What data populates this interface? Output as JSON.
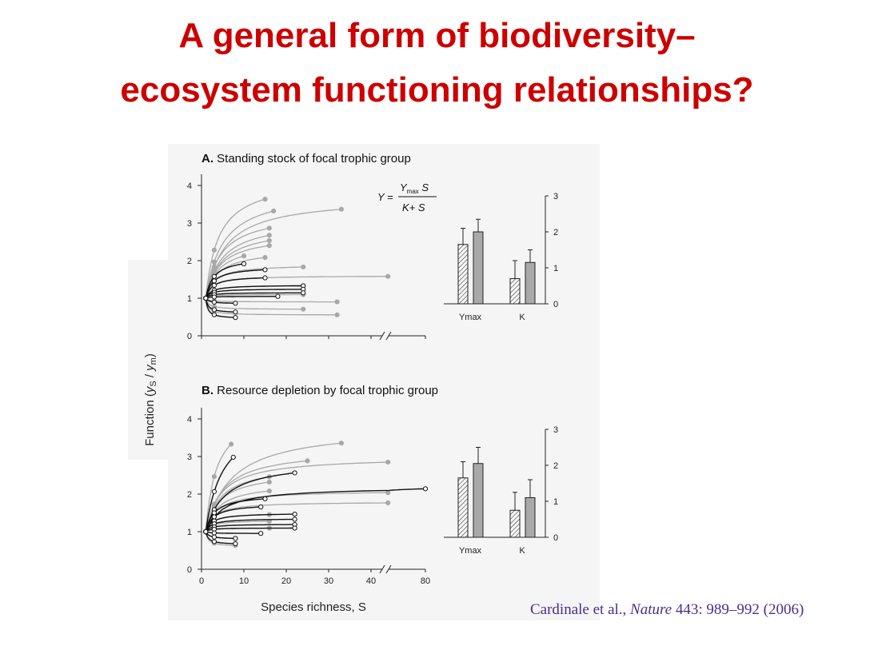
{
  "slide": {
    "title_line_1": "A general form of biodiversity–",
    "title_line_2": "ecosystem functioning relationships?",
    "citation": {
      "authors": "Cardinale et al., ",
      "journal": "Nature",
      "details": " 443: 989–992 (2006)"
    }
  },
  "colors": {
    "title": "#cc0000",
    "citation": "#4a2f8a",
    "gray_curves": "#a8a8a8",
    "black_curves": "#111111",
    "bar_fill": "#a9a9a9"
  },
  "shared_y_label": "Function (y",
  "shared_y_label_parts": [
    "Function (",
    "y",
    "S",
    " / ",
    "y",
    "m",
    ")"
  ],
  "equation": {
    "lhs": "Y =",
    "numerator": "Y",
    "numerator_sub": "max",
    "numerator_tail": " S",
    "denominator": "K+ S"
  },
  "chart_data": [
    {
      "type": "scatter",
      "panel": "A",
      "panel_letter": "A.",
      "title": "Standing stock of focal trophic group",
      "xlabel": "",
      "ylabel": "Function (yS / ym)",
      "ylim": [
        0,
        4.3
      ],
      "yticks": [
        0,
        1,
        2,
        3,
        4
      ],
      "x_break": true,
      "model": "Michaelis-Menten",
      "gray_curves": [
        {
          "ymax": 4.2,
          "k": 2.0,
          "end": 15
        },
        {
          "ymax": 3.9,
          "k": 3.0,
          "end": 17
        },
        {
          "ymax": 3.7,
          "k": 3.5,
          "end": 33
        },
        {
          "ymax": 3.3,
          "k": 2.5,
          "end": 16
        },
        {
          "ymax": 3.1,
          "k": 2.8,
          "end": 16
        },
        {
          "ymax": 2.9,
          "k": 2.6,
          "end": 16
        },
        {
          "ymax": 2.7,
          "k": 2.2,
          "end": 16
        },
        {
          "ymax": 2.5,
          "k": 2.0,
          "end": 10
        },
        {
          "ymax": 2.3,
          "k": 1.8,
          "end": 15
        },
        {
          "ymax": 1.9,
          "k": 0.9,
          "end": 24
        },
        {
          "ymax": 1.6,
          "k": 0.4,
          "end": 44
        },
        {
          "ymax": 1.35,
          "k": 0.3,
          "end": 24
        },
        {
          "ymax": 1.1,
          "k": 0.1,
          "end": 24
        },
        {
          "ymax": 0.9,
          "k": -0.15,
          "end": 32
        },
        {
          "ymax": 0.7,
          "k": -0.3,
          "end": 24
        },
        {
          "ymax": 0.55,
          "k": -0.45,
          "end": 32
        }
      ],
      "black_curves": [
        {
          "ymax": 2.1,
          "k": 0.8,
          "end": 10
        },
        {
          "ymax": 1.85,
          "k": 0.7,
          "end": 15
        },
        {
          "ymax": 1.6,
          "k": 0.5,
          "end": 15
        },
        {
          "ymax": 1.35,
          "k": 0.3,
          "end": 24
        },
        {
          "ymax": 1.25,
          "k": 0.2,
          "end": 24
        },
        {
          "ymax": 1.15,
          "k": 0.12,
          "end": 24
        },
        {
          "ymax": 1.05,
          "k": 0.03,
          "end": 18
        },
        {
          "ymax": 0.85,
          "k": -0.15,
          "end": 8
        },
        {
          "ymax": 0.6,
          "k": -0.38,
          "end": 8
        },
        {
          "ymax": 0.45,
          "k": -0.5,
          "end": 8
        }
      ],
      "inset": {
        "type": "bar",
        "categories": [
          "Ymax",
          "K"
        ],
        "series": [
          {
            "pattern": "hatched",
            "values": [
              1.65,
              0.7
            ],
            "errors": [
              0.45,
              0.5
            ]
          },
          {
            "pattern": "gray",
            "values": [
              2.0,
              1.15
            ],
            "errors": [
              0.35,
              0.35
            ]
          }
        ],
        "ylim": [
          0,
          3
        ],
        "yticks": [
          0,
          1,
          2,
          3
        ]
      }
    },
    {
      "type": "scatter",
      "panel": "B",
      "panel_letter": "B.",
      "title": "Resource depletion by focal trophic group",
      "xlabel": "Species richness, S",
      "ylabel": "Function (yS / ym)",
      "ylim": [
        0,
        4.3
      ],
      "yticks": [
        0,
        1,
        2,
        3,
        4
      ],
      "xticks": [
        0,
        10,
        20,
        30,
        40,
        80
      ],
      "x_break": true,
      "model": "Michaelis-Menten",
      "gray_curves": [
        {
          "ymax": 4.3,
          "k": 1.5,
          "end": 7
        },
        {
          "ymax": 3.8,
          "k": 5.0,
          "end": 33
        },
        {
          "ymax": 3.2,
          "k": 3.0,
          "end": 25
        },
        {
          "ymax": 3.0,
          "k": 2.5,
          "end": 44
        },
        {
          "ymax": 2.8,
          "k": 2.5,
          "end": 16
        },
        {
          "ymax": 2.6,
          "k": 2.2,
          "end": 16
        },
        {
          "ymax": 2.3,
          "k": 2.0,
          "end": 16
        },
        {
          "ymax": 2.1,
          "k": 1.5,
          "end": 44
        },
        {
          "ymax": 1.8,
          "k": 0.9,
          "end": 44
        },
        {
          "ymax": 1.5,
          "k": 0.5,
          "end": 16
        },
        {
          "ymax": 1.3,
          "k": 0.3,
          "end": 16
        },
        {
          "ymax": 1.1,
          "k": 0.1,
          "end": 16
        },
        {
          "ymax": 0.8,
          "k": -0.25,
          "end": 8
        },
        {
          "ymax": 0.6,
          "k": -0.4,
          "end": 8
        }
      ],
      "black_curves": [
        {
          "ymax": 4.2,
          "k": 3.0,
          "end": 7.5
        },
        {
          "ymax": 2.9,
          "k": 3.5,
          "end": 22
        },
        {
          "ymax": 2.2,
          "k": 3.0,
          "end": 80
        },
        {
          "ymax": 2.0,
          "k": 1.0,
          "end": 15
        },
        {
          "ymax": 1.75,
          "k": 0.8,
          "end": 14
        },
        {
          "ymax": 1.5,
          "k": 0.5,
          "end": 22
        },
        {
          "ymax": 1.35,
          "k": 0.35,
          "end": 22
        },
        {
          "ymax": 1.2,
          "k": 0.2,
          "end": 22
        },
        {
          "ymax": 1.1,
          "k": 0.1,
          "end": 22
        },
        {
          "ymax": 0.95,
          "k": -0.05,
          "end": 14
        },
        {
          "ymax": 0.8,
          "k": -0.2,
          "end": 8
        },
        {
          "ymax": 0.65,
          "k": -0.35,
          "end": 8
        }
      ],
      "inset": {
        "type": "bar",
        "categories": [
          "Ymax",
          "K"
        ],
        "series": [
          {
            "pattern": "hatched",
            "values": [
              1.65,
              0.75
            ],
            "errors": [
              0.45,
              0.5
            ]
          },
          {
            "pattern": "gray",
            "values": [
              2.05,
              1.1
            ],
            "errors": [
              0.45,
              0.5
            ]
          }
        ],
        "ylim": [
          0,
          3
        ],
        "yticks": [
          0,
          1,
          2,
          3
        ]
      }
    }
  ]
}
